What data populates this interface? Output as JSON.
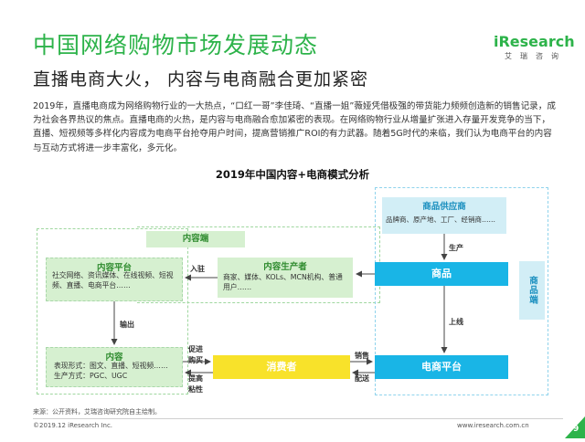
{
  "header": {
    "title": "中国网络购物市场发展动态",
    "subtitle": "直播电商大火， 内容与电商融合更加紧密"
  },
  "logo": {
    "brand": "iResearch",
    "sub": "艾瑞咨询"
  },
  "intro": {
    "text": "2019年，直播电商成为网络购物行业的一大热点，“口红一哥”李佳琦、“直播一姐”薇娅凭借极强的带货能力频频创造新的销售记录，成为社会各界热议的焦点。直播电商的火热，是内容与电商融合愈加紧密的表现。在网络购物行业从增量扩张进入存量开发竞争的当下，直播、短视频等多样化内容成为电商平台抢夺用户时间，提高营销推广ROI的有力武器。随着5G时代的来临，我们认为电商平台的内容与互动方式将进一步丰富化，多元化。"
  },
  "diagram": {
    "title": "2019年中国内容+电商模式分析",
    "content_side": {
      "label": "内容端",
      "platform": {
        "title": "内容平台",
        "desc": "社交网络、资讯媒体、在线视频、短视频、直播、电商平台……"
      },
      "producer": {
        "title": "内容生产者",
        "desc": "商家、媒体、KOLs、MCN机构、普通用户……"
      },
      "content": {
        "title": "内容",
        "desc1": "表现形式：图文、直播、短视频……",
        "desc2": "生产方式：PGC、UGC"
      }
    },
    "commodity_side": {
      "label": "商品端",
      "supplier": {
        "title": "商品供应商",
        "desc": "品牌商、原产地、工厂、经销商……"
      },
      "goods": "商品",
      "platform": "电商平台"
    },
    "consumer": "消费者",
    "arrows": {
      "enter": "入驻",
      "output": "输出",
      "promote": "促进购买",
      "stickiness": "提高粘性",
      "sales": "销售",
      "delivery": "配送",
      "production": "生产",
      "listing": "上线"
    }
  },
  "source": "来源：公开资料，艾瑞咨询研究院自主绘制。",
  "footer": {
    "copyright": "©2019.12 iResearch Inc.",
    "website": "www.iresearch.com.cn",
    "page": "9"
  },
  "colors": {
    "title_green": "#2db34a",
    "cyan": "#19b5e6",
    "yellow": "#f8e22a",
    "panel_green": "#d6f0d0",
    "panel_blue": "#d2eef6"
  }
}
